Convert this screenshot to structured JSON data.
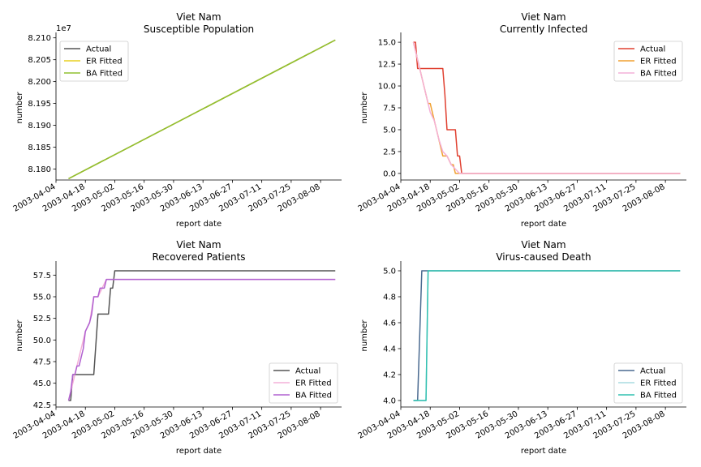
{
  "figure_title": "Viet Nam",
  "chart_data": [
    {
      "type": "line",
      "title": "Viet Nam",
      "subtitle": "Susceptible Population",
      "xlabel": "report date",
      "ylabel": "number",
      "y_multiplier_label": "1e7",
      "x_start": "2003-04-10",
      "x_end": "2003-08-15",
      "xlim": [
        "2003-04-04",
        "2003-08-18"
      ],
      "ylim": [
        8.1775,
        8.2105
      ],
      "x_ticks": [
        "2003-04-04",
        "2003-04-18",
        "2003-05-02",
        "2003-05-16",
        "2003-05-30",
        "2003-06-13",
        "2003-06-27",
        "2003-07-11",
        "2003-07-25",
        "2003-08-08"
      ],
      "y_ticks": [
        8.18,
        8.185,
        8.19,
        8.195,
        8.2,
        8.205,
        8.21
      ],
      "y_tick_labels": [
        "8.180",
        "8.185",
        "8.190",
        "8.195",
        "8.200",
        "8.205",
        "8.210"
      ],
      "legend_position": "top-left",
      "series": [
        {
          "name": "Actual",
          "color": "#555555",
          "points": [
            [
              0,
              8.1778
            ],
            [
              127,
              8.2095
            ]
          ]
        },
        {
          "name": "ER Fitted",
          "color": "#e8d020",
          "points": [
            [
              0,
              8.1778
            ],
            [
              127,
              8.2095
            ]
          ]
        },
        {
          "name": "BA Fitted",
          "color": "#90c030",
          "points": [
            [
              0,
              8.1778
            ],
            [
              127,
              8.2095
            ]
          ]
        }
      ]
    },
    {
      "type": "line",
      "title": "Viet Nam",
      "subtitle": "Currently Infected",
      "xlabel": "report date",
      "ylabel": "number",
      "x_start": "2003-04-10",
      "x_end": "2003-08-15",
      "xlim": [
        "2003-04-04",
        "2003-08-18"
      ],
      "ylim": [
        -0.75,
        15.75
      ],
      "x_ticks": [
        "2003-04-04",
        "2003-04-18",
        "2003-05-02",
        "2003-05-16",
        "2003-05-30",
        "2003-06-13",
        "2003-06-27",
        "2003-07-11",
        "2003-07-25",
        "2003-08-08"
      ],
      "y_ticks": [
        0,
        2.5,
        5,
        7.5,
        10,
        12.5,
        15
      ],
      "y_tick_labels": [
        "0.0",
        "2.5",
        "5.0",
        "7.5",
        "10.0",
        "12.5",
        "15.0"
      ],
      "legend_position": "top-right",
      "series": [
        {
          "name": "Actual",
          "color": "#e04030",
          "points": [
            [
              0,
              15
            ],
            [
              1,
              15
            ],
            [
              2,
              12
            ],
            [
              3,
              12
            ],
            [
              14,
              12
            ],
            [
              15,
              9
            ],
            [
              16,
              5
            ],
            [
              20,
              5
            ],
            [
              21,
              2
            ],
            [
              22,
              2
            ],
            [
              23,
              0
            ],
            [
              127,
              0
            ]
          ]
        },
        {
          "name": "ER Fitted",
          "color": "#f0a030",
          "points": [
            [
              0,
              15
            ],
            [
              1,
              14
            ],
            [
              2,
              13
            ],
            [
              4,
              11
            ],
            [
              6,
              9
            ],
            [
              7,
              8
            ],
            [
              8,
              8
            ],
            [
              10,
              6
            ],
            [
              12,
              4
            ],
            [
              14,
              2
            ],
            [
              15,
              2
            ],
            [
              16,
              2
            ],
            [
              18,
              1
            ],
            [
              19,
              1
            ],
            [
              20,
              0
            ],
            [
              127,
              0
            ]
          ]
        },
        {
          "name": "BA Fitted",
          "color": "#f4b0d8",
          "points": [
            [
              0,
              15
            ],
            [
              2,
              13
            ],
            [
              4,
              11
            ],
            [
              6,
              9
            ],
            [
              8,
              7
            ],
            [
              10,
              6
            ],
            [
              12,
              4
            ],
            [
              14,
              2.5
            ],
            [
              16,
              2
            ],
            [
              18,
              1
            ],
            [
              20,
              0.5
            ],
            [
              22,
              0
            ],
            [
              127,
              0
            ]
          ]
        }
      ]
    },
    {
      "type": "line",
      "title": "Viet Nam",
      "subtitle": "Recovered Patients",
      "xlabel": "report date",
      "ylabel": "number",
      "x_start": "2003-04-10",
      "x_end": "2003-08-15",
      "xlim": [
        "2003-04-04",
        "2003-08-18"
      ],
      "ylim": [
        42.25,
        58.75
      ],
      "x_ticks": [
        "2003-04-04",
        "2003-04-18",
        "2003-05-02",
        "2003-05-16",
        "2003-05-30",
        "2003-06-13",
        "2003-06-27",
        "2003-07-11",
        "2003-07-25",
        "2003-08-08"
      ],
      "y_ticks": [
        42.5,
        45,
        47.5,
        50,
        52.5,
        55,
        57.5
      ],
      "y_tick_labels": [
        "42.5",
        "45.0",
        "47.5",
        "50.0",
        "52.5",
        "55.0",
        "57.5"
      ],
      "legend_position": "bottom-right",
      "series": [
        {
          "name": "Actual",
          "color": "#555555",
          "points": [
            [
              0,
              43
            ],
            [
              1,
              43
            ],
            [
              2,
              46
            ],
            [
              12,
              46
            ],
            [
              14,
              53
            ],
            [
              19,
              53
            ],
            [
              20,
              56
            ],
            [
              21,
              56
            ],
            [
              22,
              58
            ],
            [
              127,
              58
            ]
          ]
        },
        {
          "name": "ER Fitted",
          "color": "#f4b0d8",
          "points": [
            [
              0,
              43
            ],
            [
              2,
              45
            ],
            [
              4,
              47
            ],
            [
              6,
              49
            ],
            [
              8,
              51
            ],
            [
              10,
              52
            ],
            [
              12,
              55
            ],
            [
              14,
              55
            ],
            [
              16,
              56
            ],
            [
              18,
              57
            ],
            [
              127,
              57
            ]
          ]
        },
        {
          "name": "BA Fitted",
          "color": "#b060d0",
          "points": [
            [
              0,
              43
            ],
            [
              1,
              44
            ],
            [
              2,
              46
            ],
            [
              3,
              46
            ],
            [
              4,
              47
            ],
            [
              5,
              47
            ],
            [
              6,
              48
            ],
            [
              7,
              49
            ],
            [
              8,
              51
            ],
            [
              10,
              52
            ],
            [
              11,
              53
            ],
            [
              12,
              55
            ],
            [
              14,
              55
            ],
            [
              15,
              56
            ],
            [
              17,
              56
            ],
            [
              18,
              57
            ],
            [
              127,
              57
            ]
          ]
        }
      ]
    },
    {
      "type": "line",
      "title": "Viet Nam",
      "subtitle": "Virus-caused Death",
      "xlabel": "report date",
      "ylabel": "number",
      "x_start": "2003-04-10",
      "x_end": "2003-08-15",
      "xlim": [
        "2003-04-04",
        "2003-08-18"
      ],
      "ylim": [
        3.95,
        5.05
      ],
      "x_ticks": [
        "2003-04-04",
        "2003-04-18",
        "2003-05-02",
        "2003-05-16",
        "2003-05-30",
        "2003-06-13",
        "2003-06-27",
        "2003-07-11",
        "2003-07-25",
        "2003-08-08"
      ],
      "y_ticks": [
        4.0,
        4.2,
        4.4,
        4.6,
        4.8,
        5.0
      ],
      "y_tick_labels": [
        "4.0",
        "4.2",
        "4.4",
        "4.6",
        "4.8",
        "5.0"
      ],
      "legend_position": "bottom-right",
      "series": [
        {
          "name": "Actual",
          "color": "#4a6a90",
          "points": [
            [
              0,
              4
            ],
            [
              2,
              4
            ],
            [
              4,
              5
            ],
            [
              127,
              5
            ]
          ]
        },
        {
          "name": "ER Fitted",
          "color": "#a8dce0",
          "points": [
            [
              0,
              4
            ],
            [
              6,
              4
            ],
            [
              7,
              5
            ],
            [
              127,
              5
            ]
          ]
        },
        {
          "name": "BA Fitted",
          "color": "#30c0b0",
          "points": [
            [
              0,
              4
            ],
            [
              6,
              4
            ],
            [
              7,
              5
            ],
            [
              127,
              5
            ]
          ]
        }
      ]
    }
  ]
}
